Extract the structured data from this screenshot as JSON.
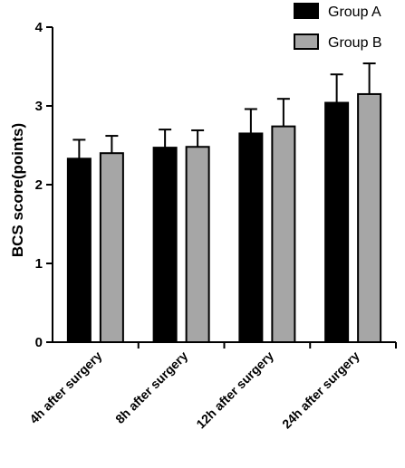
{
  "chart_data": {
    "type": "bar",
    "ylabel": "BCS score(points)",
    "xlabel": "",
    "ylim": [
      0,
      4
    ],
    "yticks": [
      "0",
      "1",
      "2",
      "3",
      "4"
    ],
    "categories": [
      "4h after surgery",
      "8h after surgery",
      "12h after surgery",
      "24h after surgery"
    ],
    "series": [
      {
        "name": "Group A",
        "color": "#000000",
        "values": [
          2.33,
          2.47,
          2.65,
          3.04
        ],
        "errors": [
          0.24,
          0.23,
          0.31,
          0.36
        ]
      },
      {
        "name": "Group B",
        "color": "#a6a6a6",
        "values": [
          2.4,
          2.48,
          2.74,
          3.15
        ],
        "errors": [
          0.22,
          0.21,
          0.35,
          0.39
        ]
      }
    ],
    "error_bars": "upper",
    "legend_position": "top-right",
    "grid": false
  }
}
